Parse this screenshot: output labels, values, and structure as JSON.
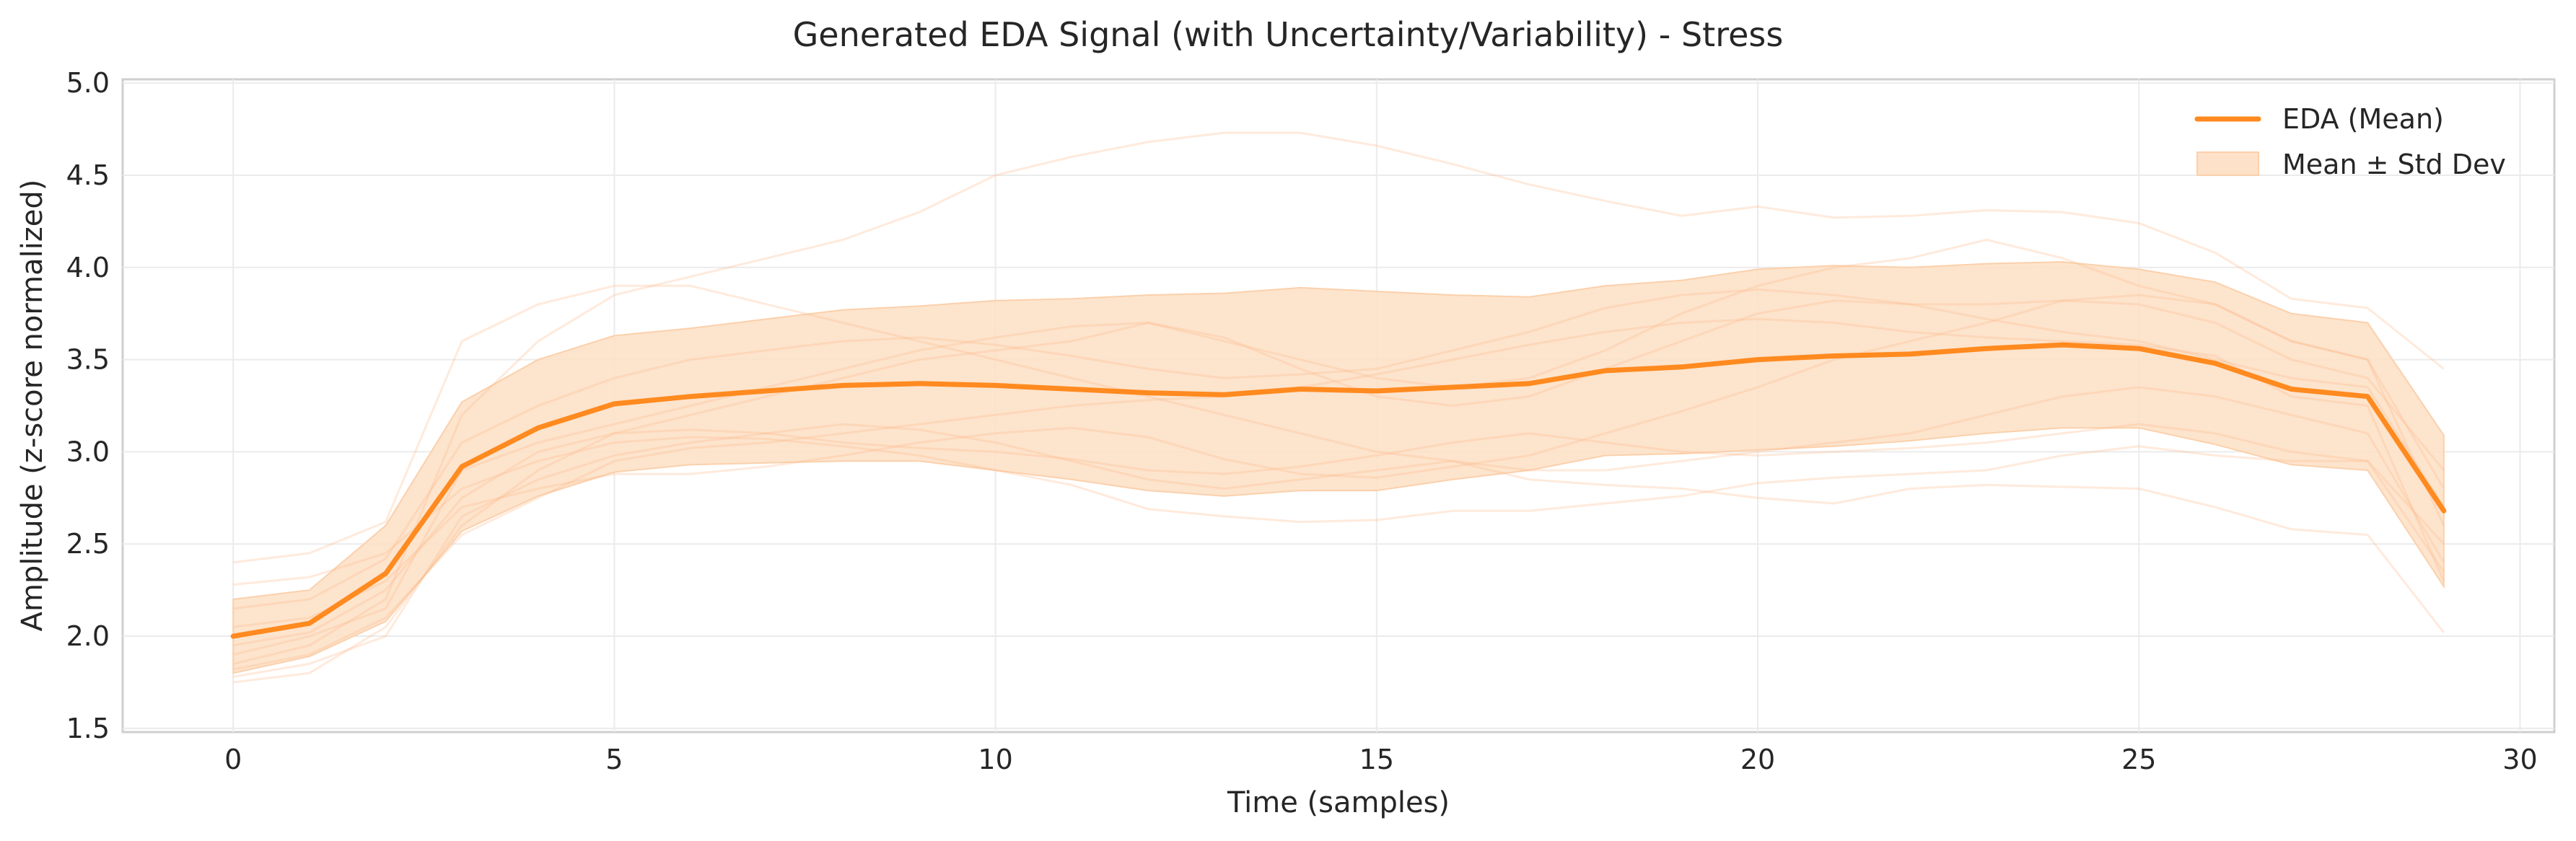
{
  "chart_data": {
    "type": "line",
    "title": "Generated EDA Signal (with Uncertainty/Variability) - Stress",
    "xlabel": "Time (samples)",
    "ylabel": "Amplitude (z-score normalized)",
    "xlim": [
      -1.45,
      30.45
    ],
    "ylim": [
      1.48,
      5.02
    ],
    "xticks": [
      0,
      5,
      10,
      15,
      20,
      25,
      30
    ],
    "yticks": [
      1.5,
      2.0,
      2.5,
      3.0,
      3.5,
      4.0,
      4.5,
      5.0
    ],
    "xtick_labels": [
      "0",
      "5",
      "10",
      "15",
      "20",
      "25",
      "30"
    ],
    "ytick_labels": [
      "1.5",
      "2.0",
      "2.5",
      "3.0",
      "3.5",
      "4.0",
      "4.5",
      "5.0"
    ],
    "grid": true,
    "legend_position": "top-right",
    "legend": [
      "EDA (Mean)",
      "Mean ± Std Dev"
    ],
    "colors": {
      "mean": "#ff8a1f",
      "band": "#fde1c8",
      "band_edge": "#fbd0ab",
      "samples": "#ffb98a"
    },
    "x": [
      0,
      1,
      2,
      3,
      4,
      5,
      6,
      7,
      8,
      9,
      10,
      11,
      12,
      13,
      14,
      15,
      16,
      17,
      18,
      19,
      20,
      21,
      22,
      23,
      24,
      25,
      26,
      27,
      28,
      29
    ],
    "series": [
      {
        "name": "EDA (Mean)",
        "values": [
          2.0,
          2.07,
          2.34,
          2.92,
          3.13,
          3.26,
          3.3,
          3.33,
          3.36,
          3.37,
          3.36,
          3.34,
          3.32,
          3.31,
          3.34,
          3.33,
          3.35,
          3.37,
          3.44,
          3.46,
          3.5,
          3.52,
          3.53,
          3.56,
          3.58,
          3.56,
          3.48,
          3.34,
          3.3,
          2.68
        ]
      },
      {
        "name": "Mean ± Std Dev",
        "upper": [
          2.2,
          2.25,
          2.6,
          3.27,
          3.5,
          3.63,
          3.67,
          3.72,
          3.77,
          3.79,
          3.82,
          3.83,
          3.85,
          3.86,
          3.89,
          3.87,
          3.85,
          3.84,
          3.9,
          3.93,
          3.99,
          4.01,
          4.0,
          4.02,
          4.03,
          3.99,
          3.92,
          3.75,
          3.7,
          3.09
        ],
        "lower": [
          1.8,
          1.89,
          2.08,
          2.57,
          2.76,
          2.89,
          2.93,
          2.94,
          2.95,
          2.95,
          2.9,
          2.85,
          2.79,
          2.76,
          2.79,
          2.79,
          2.85,
          2.9,
          2.98,
          2.99,
          3.01,
          3.03,
          3.06,
          3.1,
          3.13,
          3.13,
          3.04,
          2.93,
          2.9,
          2.27
        ]
      }
    ],
    "sample_traces": [
      [
        2.4,
        2.45,
        2.62,
        3.6,
        3.8,
        3.9,
        3.9,
        3.8,
        3.7,
        3.6,
        3.5,
        3.4,
        3.3,
        3.2,
        3.1,
        3.0,
        2.95,
        2.9,
        2.9,
        2.95,
        3.0,
        3.05,
        3.1,
        3.2,
        3.3,
        3.35,
        3.3,
        3.2,
        3.1,
        2.4
      ],
      [
        1.85,
        1.95,
        2.2,
        3.2,
        3.6,
        3.85,
        3.95,
        4.05,
        4.15,
        4.3,
        4.5,
        4.6,
        4.68,
        4.73,
        4.73,
        4.66,
        4.56,
        4.45,
        4.36,
        4.28,
        4.33,
        4.27,
        4.28,
        4.31,
        4.3,
        4.24,
        4.08,
        3.83,
        3.78,
        3.45
      ],
      [
        1.75,
        1.8,
        2.05,
        2.6,
        2.9,
        3.1,
        3.2,
        3.3,
        3.4,
        3.5,
        3.55,
        3.6,
        3.7,
        3.6,
        3.5,
        3.4,
        3.35,
        3.4,
        3.55,
        3.75,
        3.9,
        4.0,
        4.05,
        4.15,
        4.05,
        3.9,
        3.8,
        3.6,
        3.5,
        2.8
      ],
      [
        2.28,
        2.32,
        2.45,
        2.8,
        2.95,
        3.05,
        3.08,
        3.07,
        3.03,
        2.98,
        2.9,
        2.82,
        2.69,
        2.65,
        2.62,
        2.63,
        2.68,
        2.68,
        2.72,
        2.76,
        2.83,
        2.86,
        2.88,
        2.9,
        2.98,
        3.03,
        2.98,
        2.95,
        2.95,
        2.35
      ],
      [
        1.9,
        2.0,
        2.15,
        2.9,
        3.05,
        3.15,
        3.25,
        3.35,
        3.45,
        3.55,
        3.62,
        3.68,
        3.7,
        3.62,
        3.45,
        3.3,
        3.25,
        3.3,
        3.45,
        3.6,
        3.75,
        3.82,
        3.8,
        3.72,
        3.65,
        3.6,
        3.5,
        3.4,
        3.35,
        2.7
      ],
      [
        2.05,
        2.1,
        2.3,
        2.7,
        2.8,
        2.88,
        2.88,
        2.92,
        2.98,
        3.05,
        3.1,
        3.13,
        3.08,
        2.96,
        2.88,
        2.86,
        2.92,
        2.98,
        3.1,
        3.22,
        3.35,
        3.5,
        3.6,
        3.7,
        3.82,
        3.85,
        3.8,
        3.6,
        3.5,
        2.6
      ],
      [
        1.82,
        1.9,
        2.1,
        2.55,
        2.75,
        2.95,
        3.02,
        3.05,
        3.1,
        3.15,
        3.2,
        3.25,
        3.28,
        3.3,
        3.35,
        3.42,
        3.5,
        3.58,
        3.65,
        3.7,
        3.72,
        3.7,
        3.65,
        3.62,
        3.6,
        3.58,
        3.52,
        3.3,
        3.25,
        2.3
      ],
      [
        2.15,
        2.2,
        2.42,
        3.05,
        3.25,
        3.4,
        3.5,
        3.55,
        3.6,
        3.62,
        3.58,
        3.52,
        3.45,
        3.4,
        3.42,
        3.45,
        3.55,
        3.65,
        3.78,
        3.85,
        3.88,
        3.85,
        3.8,
        3.8,
        3.82,
        3.8,
        3.7,
        3.5,
        3.4,
        2.9
      ],
      [
        1.95,
        2.02,
        2.25,
        2.75,
        3.0,
        3.1,
        3.12,
        3.1,
        3.05,
        3.02,
        3.0,
        2.96,
        2.9,
        2.88,
        2.92,
        2.98,
        3.05,
        3.1,
        3.05,
        3.0,
        2.98,
        3.0,
        3.02,
        3.05,
        3.1,
        3.15,
        3.1,
        3.0,
        2.95,
        2.5
      ],
      [
        1.78,
        1.85,
        2.0,
        2.65,
        2.85,
        2.98,
        3.05,
        3.1,
        3.15,
        3.12,
        3.05,
        2.95,
        2.85,
        2.8,
        2.85,
        2.9,
        2.95,
        2.85,
        2.82,
        2.8,
        2.75,
        2.72,
        2.8,
        2.82,
        2.81,
        2.8,
        2.7,
        2.58,
        2.55,
        2.02
      ]
    ]
  }
}
